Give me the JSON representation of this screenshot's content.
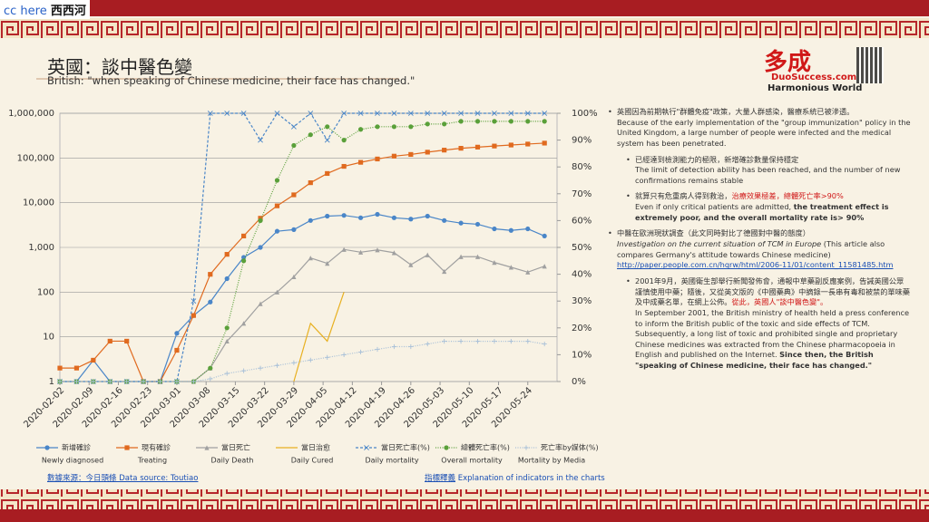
{
  "badge": {
    "cc": "cc here",
    "site": "西西河"
  },
  "header": {
    "title": "英國：談中醫色變",
    "subtitle": "British: \"when speaking of Chinese medicine, their face has changed.\""
  },
  "logo": {
    "mark": "多成",
    "site": "DuoSuccess.com",
    "tagline": "Harmonious World"
  },
  "chart_data": {
    "type": "line",
    "log_scale": true,
    "grid": true,
    "x": [
      "2020-02-02",
      "2020-02-06",
      "2020-02-10",
      "2020-02-14",
      "2020-02-18",
      "2020-02-22",
      "2020-02-26",
      "2020-03-01",
      "2020-03-05",
      "2020-03-09",
      "2020-03-13",
      "2020-03-17",
      "2020-03-21",
      "2020-03-25",
      "2020-03-29",
      "2020-04-02",
      "2020-04-06",
      "2020-04-10",
      "2020-04-14",
      "2020-04-18",
      "2020-04-22",
      "2020-04-26",
      "2020-04-30",
      "2020-05-04",
      "2020-05-08",
      "2020-05-12",
      "2020-05-16",
      "2020-05-20",
      "2020-05-24",
      "2020-05-28"
    ],
    "xlim": [
      "2020-02-02",
      "2020-05-31"
    ],
    "xticks": [
      "2020-02-02",
      "2020-02-09",
      "2020-02-16",
      "2020-02-23",
      "2020-03-01",
      "2020-03-08",
      "2020-03-15",
      "2020-03-22",
      "2020-03-29",
      "2020-04-05",
      "2020-04-12",
      "2020-04-19",
      "2020-04-26",
      "2020-05-03",
      "2020-05-10",
      "2020-05-17",
      "2020-05-24"
    ],
    "ylim": [
      1,
      1000000
    ],
    "yticks": [
      1,
      10,
      100,
      {
        "value": 1000,
        "label": "1,000"
      },
      {
        "value": 10000,
        "label": "10,000"
      },
      {
        "value": 100000,
        "label": "100,000"
      },
      {
        "value": 1000000,
        "label": "1,000,000"
      }
    ],
    "y2lim": [
      0,
      100
    ],
    "y2ticks": [
      {
        "value": 0,
        "label": "0%"
      },
      {
        "value": 10,
        "label": "10%"
      },
      {
        "value": 20,
        "label": "20%"
      },
      {
        "value": 30,
        "label": "30%"
      },
      {
        "value": 40,
        "label": "40%"
      },
      {
        "value": 50,
        "label": "50%"
      },
      {
        "value": 60,
        "label": "60%"
      },
      {
        "value": 70,
        "label": "70%"
      },
      {
        "value": 80,
        "label": "80%"
      },
      {
        "value": 90,
        "label": "90%"
      },
      {
        "value": 100,
        "label": "100%"
      }
    ],
    "series": [
      {
        "name": "Newly diagnosed",
        "name_zh": "新增確診",
        "color": "#4a86c8",
        "marker": "circle",
        "dash": "solid",
        "values": [
          1,
          1,
          3,
          1,
          1,
          1,
          1,
          12,
          30,
          60,
          200,
          600,
          1000,
          2300,
          2500,
          4000,
          5000,
          5200,
          4600,
          5500,
          4600,
          4300,
          5000,
          4000,
          3500,
          3300,
          2600,
          2400,
          2600,
          1800
        ]
      },
      {
        "name": "Treating",
        "name_zh": "現有確診",
        "color": "#e06a1f",
        "marker": "square",
        "dash": "solid",
        "values": [
          2,
          2,
          3,
          8,
          8,
          1,
          1,
          5,
          30,
          250,
          700,
          1800,
          4500,
          8500,
          15000,
          28000,
          45000,
          65000,
          80000,
          95000,
          110000,
          120000,
          135000,
          150000,
          165000,
          175000,
          185000,
          195000,
          205000,
          215000
        ]
      },
      {
        "name": "Daily Death",
        "name_zh": "當日死亡",
        "color": "#a0a0a0",
        "marker": "triangle",
        "dash": "solid",
        "values": [
          1,
          1,
          1,
          1,
          1,
          1,
          1,
          1,
          1,
          2,
          8,
          20,
          55,
          100,
          220,
          580,
          440,
          900,
          780,
          880,
          760,
          410,
          680,
          290,
          620,
          620,
          460,
          360,
          280,
          380
        ]
      },
      {
        "name": "Daily Cured",
        "name_zh": "當日治愈",
        "color": "#e8b020",
        "marker": "none",
        "dash": "solid",
        "values": [
          null,
          null,
          null,
          null,
          null,
          null,
          null,
          null,
          null,
          null,
          null,
          null,
          5,
          null,
          1,
          20,
          8,
          100,
          null,
          null,
          null,
          null,
          null,
          null,
          null,
          null,
          null,
          null,
          null,
          null
        ]
      },
      {
        "name": "Daily mortality",
        "name_zh": "當日死亡率(%)",
        "color": "#4a86c8",
        "marker": "x",
        "dash": "dash",
        "axis": "y2",
        "values": [
          0,
          0,
          0,
          0,
          0,
          0,
          0,
          0,
          30,
          100,
          100,
          100,
          90,
          100,
          95,
          100,
          90,
          100,
          100,
          100,
          100,
          100,
          100,
          100,
          100,
          100,
          100,
          100,
          100,
          100
        ]
      },
      {
        "name": "Overall mortality",
        "name_zh": "總體死亡率(%)",
        "color": "#5aa03a",
        "marker": "circle",
        "dash": "dot",
        "axis": "y2",
        "values": [
          0,
          0,
          0,
          0,
          0,
          0,
          0,
          0,
          0,
          5,
          20,
          45,
          60,
          75,
          88,
          92,
          95,
          90,
          94,
          95,
          95,
          95,
          96,
          96,
          97,
          97,
          97,
          97,
          97,
          97
        ]
      },
      {
        "name": "Mortality by Media",
        "name_zh": "死亡率by媒体(%)",
        "color": "#a8c0d8",
        "marker": "plus",
        "dash": "dot",
        "axis": "y2",
        "values": [
          0,
          0,
          0,
          0,
          0,
          0,
          0,
          0,
          0,
          1,
          3,
          4,
          5,
          6,
          7,
          8,
          9,
          10,
          11,
          12,
          13,
          13,
          14,
          15,
          15,
          15,
          15,
          15,
          15,
          14
        ]
      }
    ]
  },
  "footer": {
    "source": "數據來源：今日頭條 Data source: Toutiao",
    "explain_zh": "指標釋義",
    "explain_en": "Explanation of indicators in the charts"
  },
  "panel": {
    "b1": {
      "zh": "英國因為前期執行\"群體免疫\"政策，大量人群感染，醫療系統已被滲透。",
      "en": "Because of the early implementation of the \"group immunization\" policy in the United Kingdom, a large number of people were infected and the medical system has been penetrated."
    },
    "b1a": {
      "zh": "已經達到檢測能力的極限，新增確診數量保持穩定",
      "en": "The limit of detection ability has been reached, and the number of new confirmations remains stable"
    },
    "b1b": {
      "zh": "就算只有危重病人得到救治，",
      "zh_red": "治療效果極差，總體死亡率>90%",
      "en": "Even if only critical patients are admitted, ",
      "en_bold": "the treatment effect is extremely poor, and the overall mortality rate is> 90%"
    },
    "b2": {
      "zh": "中醫在歐洲現狀調查（此文同時對比了德國對中醫的態度）",
      "en_italic": "Investigation on the current situation of TCM in Europe",
      "en": " (This article also compares Germany's attitude towards Chinese medicine)",
      "link": "http://paper.people.com.cn/hqrw/html/2006-11/01/content_11581485.htm"
    },
    "b2a": {
      "zh": "2001年9月，英國衛生部舉行新聞發佈會，通報中草藥副反應案例，告誡英國公眾謹慎使用中藥；隨後，又從英文版的《中國藥典》中摘錄一長串有毒和被禁的單味藥及中成藥名單，在網上公佈。",
      "zh_red": "從此，英國人\"談中醫色變\"。",
      "en": "In September 2001, the British ministry of health held a press conference to inform the British public of the toxic and side effects of TCM. Subsequently, a long list of toxic and prohibited single and proprietary Chinese medicines was extracted from the Chinese pharmacopoeia in English and published on the Internet. ",
      "en_bold": "Since then, the British \"speaking of Chinese medicine, their face has changed.\""
    }
  }
}
